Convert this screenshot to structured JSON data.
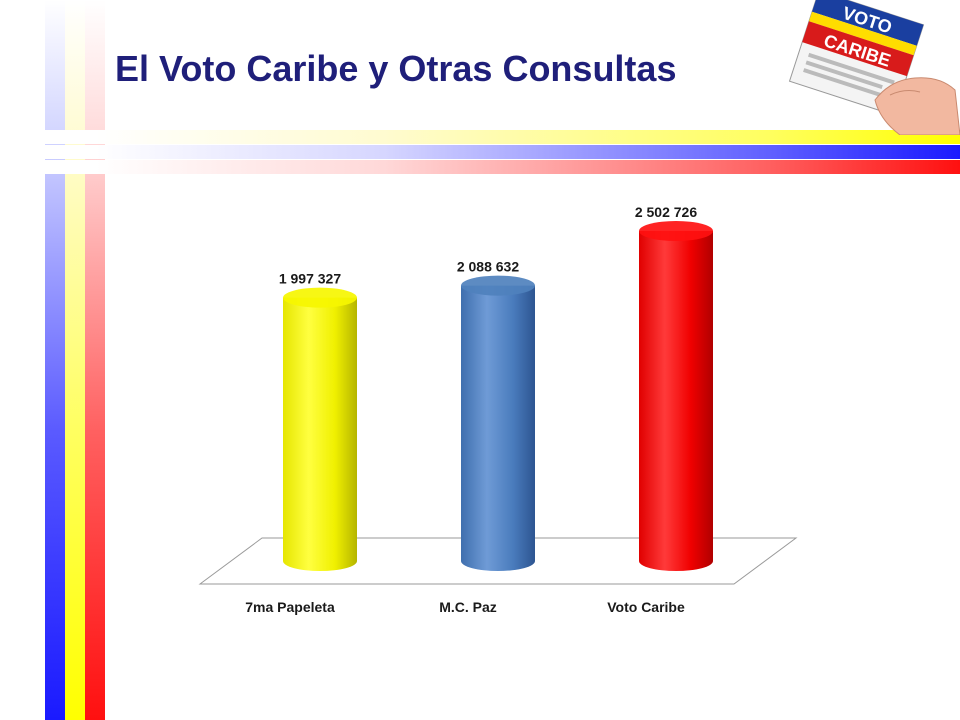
{
  "slide": {
    "title": "El Voto Caribe y Otras Consultas",
    "logo_text": "VOTO CARIBE"
  },
  "colors": {
    "title": "#1f1f7a",
    "blue": "#1a1aff",
    "yellow": "#ffff00",
    "red": "#ff1010"
  },
  "chart_data": {
    "type": "bar",
    "style": "3d-cylinder",
    "categories": [
      "7ma Papeleta",
      "M.C. Paz",
      "Voto Caribe"
    ],
    "values": [
      1997327,
      2088632,
      2502726
    ],
    "value_labels": [
      "1 997 327",
      "2 088 632",
      "2 502 726"
    ],
    "bar_colors": [
      "#f6f600",
      "#4f81bd",
      "#ff1010"
    ],
    "title": "",
    "xlabel": "",
    "ylabel": "",
    "ylim": [
      0,
      3000000
    ],
    "grid": false,
    "legend": "none"
  }
}
